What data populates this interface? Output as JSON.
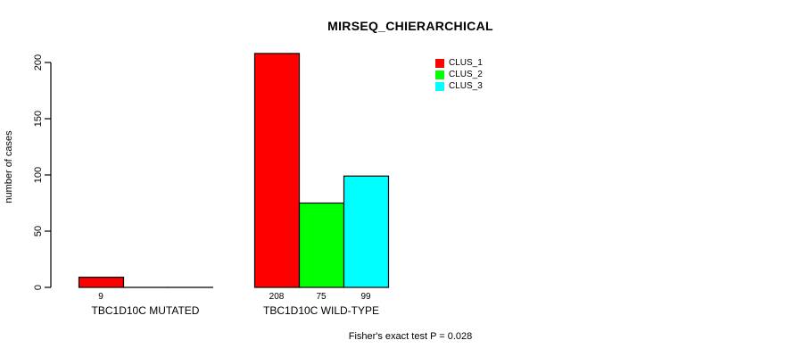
{
  "chart_data": {
    "type": "bar",
    "title": "MIRSEQ_CHIERARCHICAL",
    "ylabel": "number of cases",
    "xlabel": "",
    "ylim": [
      0,
      200
    ],
    "yticks": [
      0,
      50,
      100,
      150,
      200
    ],
    "grid": false,
    "legend_position": "top-right-inside",
    "series": [
      {
        "name": "CLUS_1",
        "color": "#ff0000"
      },
      {
        "name": "CLUS_2",
        "color": "#00ff00"
      },
      {
        "name": "CLUS_3",
        "color": "#00ffff"
      }
    ],
    "groups": [
      {
        "label": "TBC1D10C MUTATED",
        "bars": [
          {
            "series": "CLUS_1",
            "value": 9,
            "label": "9"
          },
          {
            "series": "CLUS_2",
            "value": 0,
            "label": ""
          },
          {
            "series": "CLUS_3",
            "value": 0,
            "label": ""
          }
        ]
      },
      {
        "label": "TBC1D10C WILD-TYPE",
        "bars": [
          {
            "series": "CLUS_1",
            "value": 208,
            "label": "208"
          },
          {
            "series": "CLUS_2",
            "value": 75,
            "label": "75"
          },
          {
            "series": "CLUS_3",
            "value": 99,
            "label": "99"
          }
        ]
      }
    ],
    "footnote": "Fisher's exact test P = 0.028",
    "bar_border_color": "#000000",
    "axis_color": "#000000"
  }
}
